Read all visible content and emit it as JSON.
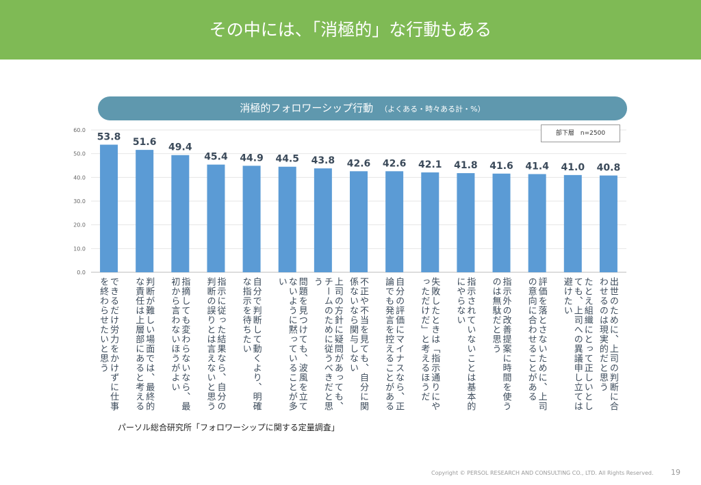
{
  "header": {
    "title": "その中には、「消極的」な行動もある"
  },
  "chart_title": {
    "main": "消極的フォロワーシップ行動",
    "sub": "（よくある・時々ある計・%）"
  },
  "sample_note": "部下層　n=2500",
  "source": "パーソル総合研究所「フォロワーシップに関する定量調査」",
  "footer": {
    "copyright": "Copyright © PERSOL RESEARCH AND CONSULTING CO., LTD. All Rights Reserved.",
    "page": "19"
  },
  "colors": {
    "header": "#7fba55",
    "pill": "#5f98ae",
    "bar": "#5b9bd5"
  },
  "chart_data": {
    "type": "bar",
    "ylim": [
      0,
      60
    ],
    "yticks": [
      "0.0",
      "10.0",
      "20.0",
      "30.0",
      "40.0",
      "50.0",
      "60.0"
    ],
    "grid": true,
    "categories": [
      "できるだけ労力をかけずに仕事を終わらせたいと思う",
      "判断が難しい場面では、最終的な責任は上層部にあると考える",
      "指摘しても変わらないなら、最初から言わないほうがよい",
      "指示に従った結果なら、自分の判断の誤りとは言えないと思う",
      "自分で判断して動くより、明確な指示を待ちたい",
      "問題を見つけても、波風を立てないように黙っていることが多い",
      "上司の方針に疑問があっても、チームのために従うべきだと思う",
      "不正や不当を見ても、自分に関係ないなら関与しない",
      "自分の評価にマイナスなら、正論でも発言を控えることがある",
      "失敗したときは「指示通りにやっただけだ」と考えるほうだ",
      "指示されていないことは基本的にやらない",
      "指示外の改善提案に時間を使うのは無駄だと思う",
      "評価を落とさないために、上司の意向に合わせることがある",
      "たとえ組織にとって正しいとしても、上司への異議申し立ては避けたい",
      "出世のために、上司の判断に合わせるのは現実的だと思う"
    ],
    "values": [
      53.8,
      51.6,
      49.4,
      45.4,
      44.9,
      44.5,
      43.8,
      42.6,
      42.6,
      42.1,
      41.8,
      41.6,
      41.4,
      41.0,
      40.8
    ],
    "value_labels": [
      "53.8",
      "51.6",
      "49.4",
      "45.4",
      "44.9",
      "44.5",
      "43.8",
      "42.6",
      "42.6",
      "42.1",
      "41.8",
      "41.6",
      "41.4",
      "41.0",
      "40.8"
    ]
  }
}
